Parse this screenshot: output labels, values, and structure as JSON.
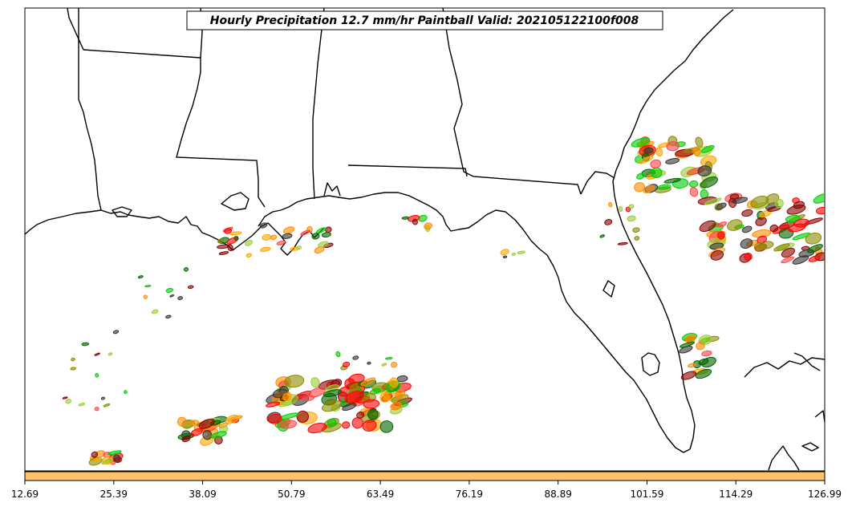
{
  "title": "Hourly Precipitation 12.7 mm/hr Paintball Valid: 202105122100f008",
  "colorbar": {
    "color": "#ffc266",
    "tick_labels": [
      "12.69",
      "25.39",
      "38.09",
      "50.79",
      "63.49",
      "76.19",
      "88.89",
      "101.59",
      "114.29",
      "126.99"
    ]
  },
  "member_colors": [
    "#ff0000",
    "#ff8c00",
    "#00cc00",
    "#8b0000",
    "#006400",
    "#9acd32",
    "#ff4444",
    "#8b8b00",
    "#ffa500",
    "#333333"
  ]
}
